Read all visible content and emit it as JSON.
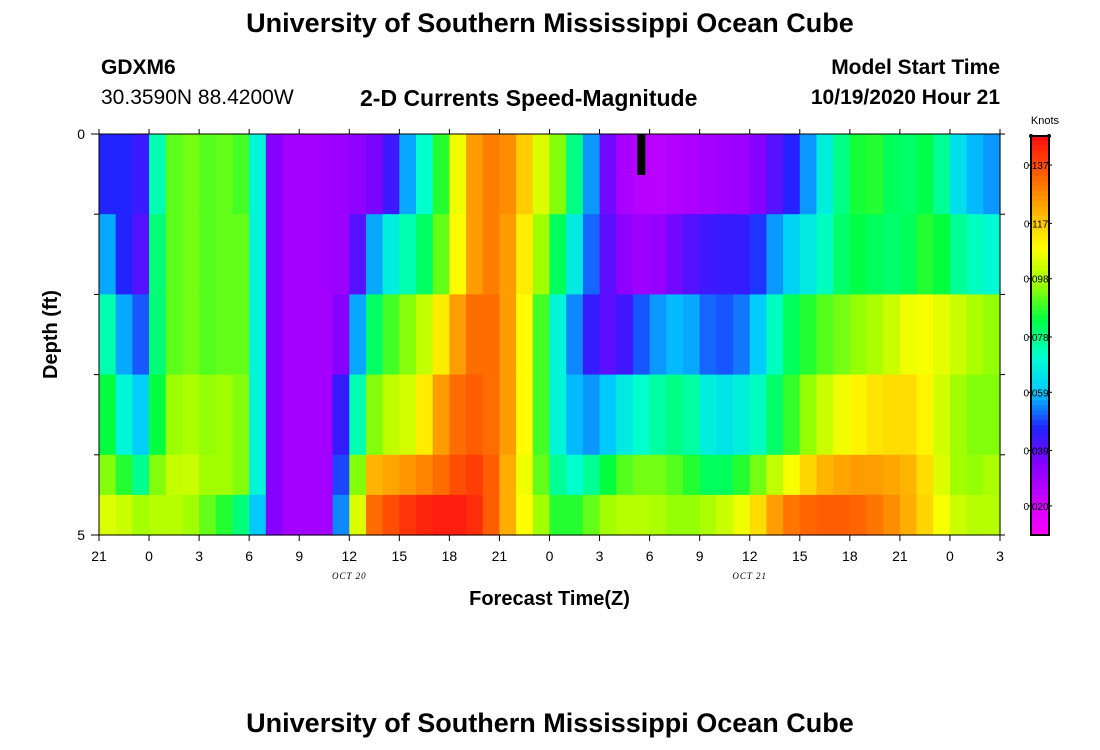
{
  "header": {
    "title": "University of Southern Mississippi Ocean Cube",
    "station_id": "GDXM6",
    "coords": "30.3590N 88.4200W",
    "subtitle": "2-D Currents Speed-Magnitude",
    "model_start_label": "Model Start Time",
    "model_start_value": "10/19/2020 Hour 21"
  },
  "footer": {
    "title": "University of Southern Mississippi Ocean Cube"
  },
  "colors": {
    "stops": [
      "#ff00ff",
      "#cc00ff",
      "#8800ff",
      "#2222ff",
      "#00c8ff",
      "#00ffd0",
      "#00ff40",
      "#a0ff00",
      "#ffff00",
      "#ffb000",
      "#ff6000",
      "#ff1010"
    ],
    "now_marker": "#000000"
  },
  "chart_data": {
    "type": "heatmap",
    "title": "2-D Currents Speed-Magnitude",
    "xlabel": "Forecast Time(Z)",
    "ylabel": "Depth (ft)",
    "x_tick_labels": [
      "21",
      "0",
      "3",
      "6",
      "9",
      "12",
      "15",
      "18",
      "21",
      "0",
      "3",
      "6",
      "9",
      "12",
      "15",
      "18",
      "21",
      "0",
      "3"
    ],
    "x_start_hour": 21,
    "hours_span": 54,
    "date_labels": [
      {
        "text": "OCT 20",
        "hour": 15
      },
      {
        "text": "OCT 21",
        "hour": 39
      }
    ],
    "now_marker_hour": 32.5,
    "y_tick_labels": [
      "0",
      "5"
    ],
    "ylim": [
      0,
      5
    ],
    "depths": [
      0.25,
      1.0,
      2.0,
      3.0,
      4.0,
      4.75
    ],
    "colorbar": {
      "unit": "Knots",
      "min": 0.01,
      "max": 0.147,
      "tick_values": [
        "0.020",
        "0.039",
        "0.059",
        "0.078",
        "0.098",
        "0.117",
        "0.137"
      ]
    },
    "keyframes": [
      {
        "depth": 0,
        "h": [
          0,
          0.055,
          1,
          0.04,
          2,
          0.055,
          2.7,
          0.04,
          3.5,
          0.075,
          4.2,
          0.09,
          5,
          0.095,
          7,
          0.09,
          8,
          0.095,
          9,
          0.085,
          9.5,
          0.07,
          10,
          0.04,
          11,
          0.03,
          13,
          0.03,
          15,
          0.032,
          17,
          0.038,
          18,
          0.05,
          19,
          0.065,
          20,
          0.08,
          21,
          0.095,
          22,
          0.12,
          23,
          0.13,
          24,
          0.13,
          25,
          0.125,
          26,
          0.11,
          27,
          0.1,
          28,
          0.09,
          30,
          0.045,
          31,
          0.03,
          33,
          0.025,
          35,
          0.028,
          37,
          0.03,
          39,
          0.032,
          42,
          0.05,
          44,
          0.075,
          46,
          0.09,
          48,
          0.08,
          50,
          0.085,
          51,
          0.07,
          52,
          0.06,
          54,
          0.055
        ]
      },
      {
        "depth": 1,
        "h": [
          0,
          0.065,
          1,
          0.05,
          2,
          0.045,
          2.7,
          0.04,
          3.5,
          0.08,
          4.2,
          0.09,
          5,
          0.095,
          7,
          0.09,
          8,
          0.095,
          9,
          0.09,
          9.5,
          0.07,
          10,
          0.04,
          11,
          0.03,
          13,
          0.03,
          15,
          0.032,
          16,
          0.05,
          17,
          0.065,
          18,
          0.072,
          20,
          0.085,
          21,
          0.1,
          22,
          0.12,
          23,
          0.13,
          24,
          0.13,
          25,
          0.12,
          26,
          0.105,
          27,
          0.09,
          28,
          0.075,
          30,
          0.045,
          31,
          0.035,
          33,
          0.03,
          35,
          0.04,
          37,
          0.045,
          39,
          0.045,
          41,
          0.06,
          43,
          0.07,
          45,
          0.085,
          48,
          0.08,
          50,
          0.09,
          51,
          0.08,
          52,
          0.075,
          54,
          0.07
        ]
      },
      {
        "depth": 2,
        "h": [
          0,
          0.09,
          1,
          0.06,
          2,
          0.055,
          2.7,
          0.05,
          3.5,
          0.08,
          4.2,
          0.09,
          5,
          0.095,
          7,
          0.09,
          8,
          0.095,
          9,
          0.09,
          9.5,
          0.07,
          10,
          0.04,
          11,
          0.03,
          14,
          0.03,
          15,
          0.04,
          16,
          0.075,
          17,
          0.088,
          18,
          0.092,
          20,
          0.105,
          21,
          0.12,
          22,
          0.13,
          23,
          0.135,
          24,
          0.13,
          25,
          0.12,
          26,
          0.1,
          27,
          0.08,
          28,
          0.06,
          30,
          0.04,
          31,
          0.04,
          33,
          0.055,
          35,
          0.06,
          37,
          0.05,
          39,
          0.055,
          41,
          0.08,
          43,
          0.09,
          45,
          0.095,
          47,
          0.1,
          49,
          0.11,
          51,
          0.105,
          52,
          0.1,
          54,
          0.095
        ]
      },
      {
        "depth": 3,
        "h": [
          0,
          0.095,
          1,
          0.075,
          2,
          0.065,
          2.7,
          0.06,
          3.5,
          0.085,
          4.2,
          0.095,
          5,
          0.1,
          7,
          0.095,
          8,
          0.1,
          9,
          0.09,
          9.5,
          0.07,
          10,
          0.04,
          11,
          0.03,
          14,
          0.03,
          15,
          0.06,
          16,
          0.09,
          17,
          0.1,
          19,
          0.105,
          20,
          0.12,
          21,
          0.13,
          22,
          0.135,
          23,
          0.135,
          24,
          0.13,
          25,
          0.12,
          26,
          0.1,
          27,
          0.08,
          28,
          0.06,
          30,
          0.055,
          31,
          0.065,
          33,
          0.075,
          35,
          0.08,
          37,
          0.065,
          39,
          0.07,
          41,
          0.085,
          43,
          0.1,
          45,
          0.11,
          47,
          0.115,
          49,
          0.115,
          51,
          0.1,
          52,
          0.095,
          54,
          0.095
        ]
      },
      {
        "depth": 4,
        "h": [
          0,
          0.1,
          1,
          0.09,
          2,
          0.085,
          2.7,
          0.075,
          3.5,
          0.095,
          4.2,
          0.1,
          5,
          0.105,
          7,
          0.095,
          8,
          0.1,
          9,
          0.09,
          9.5,
          0.07,
          10,
          0.04,
          11,
          0.03,
          14,
          0.03,
          15,
          0.07,
          16,
          0.12,
          18,
          0.125,
          20,
          0.13,
          21,
          0.135,
          22,
          0.14,
          23,
          0.14,
          24,
          0.13,
          25,
          0.115,
          26,
          0.1,
          27,
          0.085,
          28,
          0.07,
          30,
          0.08,
          31,
          0.09,
          33,
          0.095,
          35,
          0.09,
          37,
          0.08,
          39,
          0.09,
          41,
          0.105,
          43,
          0.12,
          45,
          0.125,
          47,
          0.125,
          49,
          0.12,
          51,
          0.1,
          52,
          0.095,
          54,
          0.1
        ]
      },
      {
        "depth": 5,
        "h": [
          0,
          0.11,
          1,
          0.1,
          2,
          0.105,
          2.7,
          0.095,
          3.5,
          0.1,
          4.2,
          0.1,
          5,
          0.1,
          7,
          0.09,
          8,
          0.085,
          9,
          0.075,
          9.5,
          0.06,
          10,
          0.04,
          11,
          0.03,
          14,
          0.03,
          15,
          0.08,
          16,
          0.13,
          18,
          0.14,
          20,
          0.145,
          21,
          0.145,
          22,
          0.145,
          23,
          0.14,
          24,
          0.13,
          25,
          0.115,
          26,
          0.105,
          27,
          0.09,
          28,
          0.085,
          30,
          0.095,
          31,
          0.1,
          33,
          0.1,
          35,
          0.095,
          37,
          0.1,
          39,
          0.11,
          41,
          0.13,
          43,
          0.135,
          45,
          0.135,
          47,
          0.13,
          49,
          0.12,
          51,
          0.105,
          52,
          0.1,
          54,
          0.1
        ]
      }
    ]
  }
}
